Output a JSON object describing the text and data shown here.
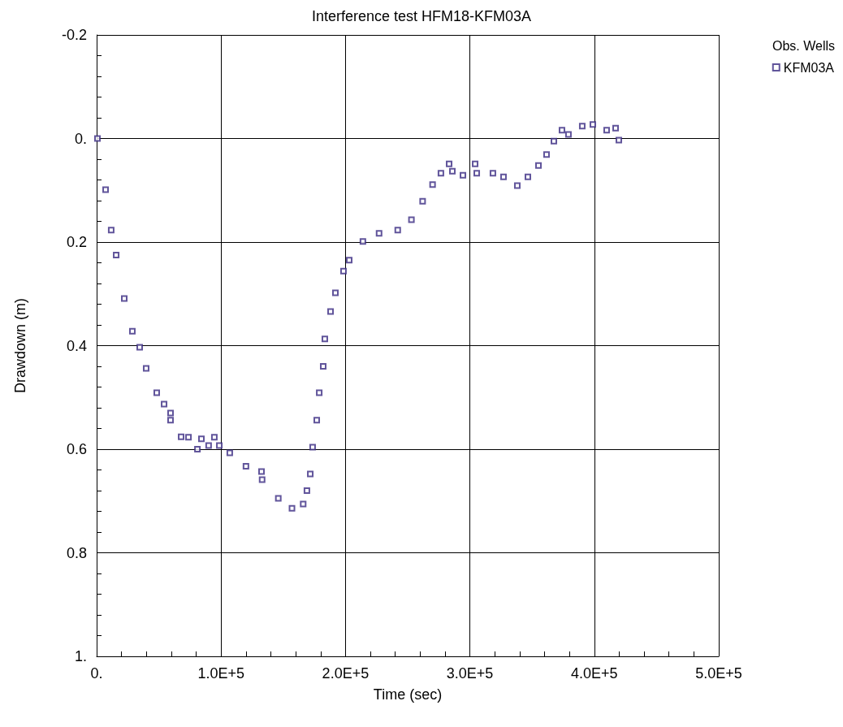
{
  "chart_data": {
    "type": "scatter",
    "title": "Interference test HFM18-KFM03A",
    "xlabel": "Time (sec)",
    "ylabel": "Drawdown (m)",
    "legend_title": "Obs. Wells",
    "legend": "top right",
    "marker": "square",
    "grid": true,
    "xlim": [
      0,
      500000
    ],
    "xticks": [
      {
        "value": 0,
        "label": "0."
      },
      {
        "value": 100000,
        "label": "1.0E+5"
      },
      {
        "value": 200000,
        "label": "2.0E+5"
      },
      {
        "value": 300000,
        "label": "3.0E+5"
      },
      {
        "value": 400000,
        "label": "4.0E+5"
      },
      {
        "value": 500000,
        "label": "5.0E+5"
      }
    ],
    "ylim": [
      1,
      -0.2
    ],
    "yticks": [
      -0.2,
      {
        "value": 0,
        "label": "0."
      },
      0.2,
      0.4,
      0.6,
      0.8,
      {
        "value": 1,
        "label": "1."
      }
    ],
    "series": [
      {
        "name": "KFM03A",
        "color": "#3a2a82",
        "x": [
          650,
          7200,
          11700,
          15700,
          22200,
          28700,
          34600,
          39800,
          48300,
          54200,
          59400,
          59400,
          67900,
          73800,
          81000,
          84200,
          90000,
          94600,
          98600,
          107000,
          120000,
          132500,
          133000,
          146000,
          157000,
          166000,
          169000,
          171700,
          173600,
          176900,
          178900,
          182100,
          183400,
          188000,
          191900,
          198400,
          203000,
          214000,
          227000,
          242000,
          253000,
          262000,
          270000,
          276700,
          283300,
          285900,
          294400,
          304200,
          305500,
          318500,
          327000,
          338100,
          346600,
          355100,
          361600,
          367500,
          374000,
          379200,
          390300,
          398800,
          409900,
          417100,
          419700
        ],
        "values": [
          0,
          0.099,
          0.177,
          0.225,
          0.309,
          0.372,
          0.403,
          0.444,
          0.491,
          0.513,
          0.544,
          0.53,
          0.576,
          0.577,
          0.6,
          0.58,
          0.593,
          0.577,
          0.593,
          0.607,
          0.633,
          0.643,
          0.659,
          0.695,
          0.714,
          0.706,
          0.68,
          0.648,
          0.596,
          0.544,
          0.491,
          0.44,
          0.387,
          0.334,
          0.298,
          0.256,
          0.235,
          0.199,
          0.183,
          0.177,
          0.157,
          0.121,
          0.089,
          0.067,
          0.049,
          0.063,
          0.071,
          0.049,
          0.067,
          0.067,
          0.074,
          0.091,
          0.074,
          0.052,
          0.031,
          0.005,
          -0.016,
          -0.008,
          -0.024,
          -0.027,
          -0.016,
          -0.02,
          0.003
        ]
      }
    ]
  }
}
